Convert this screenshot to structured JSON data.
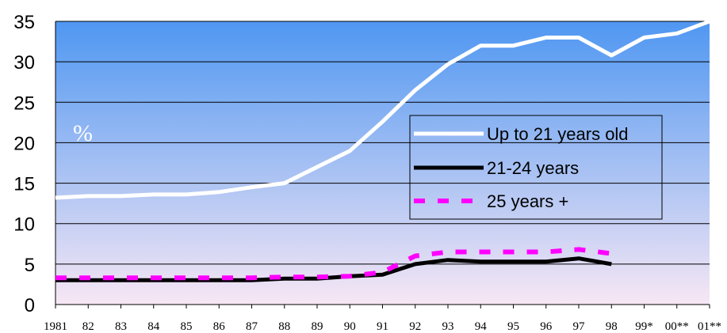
{
  "chart_data": {
    "type": "line",
    "categories": [
      "1981",
      "82",
      "83",
      "84",
      "85",
      "86",
      "87",
      "88",
      "89",
      "90",
      "91",
      "92",
      "93",
      "94",
      "95",
      "96",
      "97",
      "98",
      "99*",
      "00**",
      "01**"
    ],
    "ylim": [
      0,
      35
    ],
    "yticks": [
      0,
      5,
      10,
      15,
      20,
      25,
      30,
      35
    ],
    "y_unit_label": "%",
    "grid": "horizontal",
    "legend_position": "right-middle",
    "background_gradient": [
      "#4f97f2",
      "#f7e7f4"
    ],
    "series": [
      {
        "name": "Up to 21 years old",
        "color": "#ffffff",
        "style": "solid",
        "values": [
          13.2,
          13.4,
          13.4,
          13.6,
          13.6,
          13.9,
          14.5,
          15.0,
          17.0,
          19.0,
          22.6,
          26.5,
          29.7,
          32.0,
          32.0,
          33.0,
          33.0,
          30.8,
          33.0,
          33.5,
          35.0
        ]
      },
      {
        "name": "21-24 years",
        "color": "#000000",
        "style": "solid",
        "values": [
          3.0,
          3.0,
          3.0,
          3.0,
          3.0,
          3.0,
          3.0,
          3.2,
          3.2,
          3.5,
          3.7,
          5.0,
          5.5,
          5.3,
          5.3,
          5.3,
          5.7,
          5.0,
          null,
          null,
          null
        ]
      },
      {
        "name": "25 years +",
        "color": "#ff00ff",
        "style": "dashed",
        "values": [
          3.3,
          3.3,
          3.3,
          3.3,
          3.3,
          3.3,
          3.3,
          3.4,
          3.4,
          3.5,
          4.0,
          6.0,
          6.5,
          6.5,
          6.5,
          6.5,
          6.8,
          6.3,
          null,
          null,
          null
        ]
      }
    ]
  }
}
